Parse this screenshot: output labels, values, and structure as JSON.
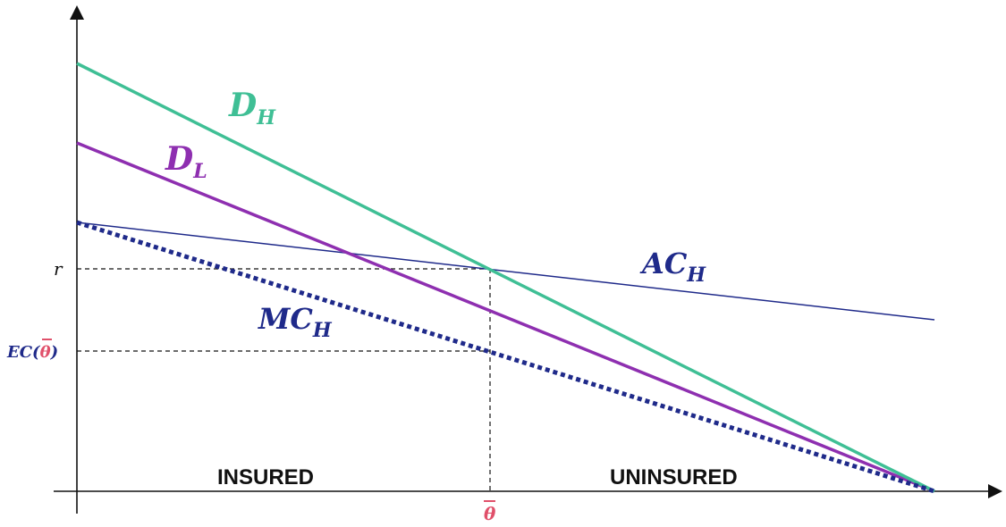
{
  "diagram": {
    "colors": {
      "d_h": "#3fbf95",
      "d_l": "#8e2fb0",
      "cost": "#1f2a8a",
      "theta": "#e0506a",
      "axis": "#111111"
    },
    "labels": {
      "d_h_main": "D",
      "d_h_sub": "H",
      "d_l_main": "D",
      "d_l_sub": "L",
      "ac_h_main": "AC",
      "ac_h_sub": "H",
      "mc_h_main": "MC",
      "mc_h_sub": "H",
      "r_tick": "r",
      "ec_prefix": "EC(",
      "ec_theta": "θ",
      "ec_suffix": ")",
      "theta_bar": "θ",
      "insured": "INSURED",
      "uninsured": "UNINSURED"
    }
  }
}
